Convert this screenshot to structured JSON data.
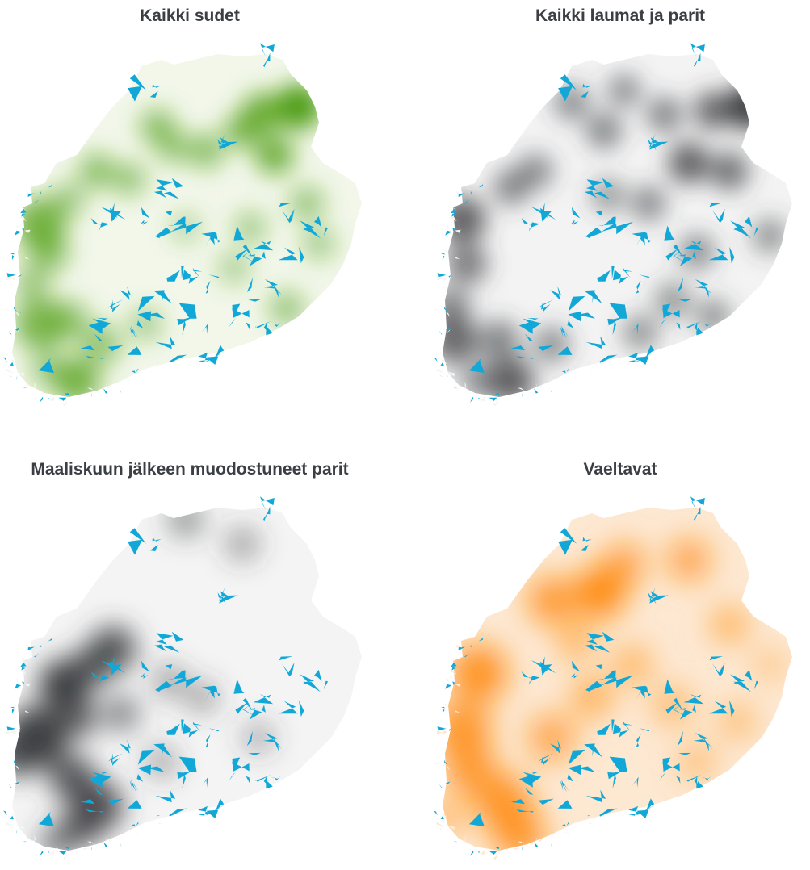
{
  "panels": [
    {
      "title": "Kaikki sudet",
      "colormap": "green",
      "base": "#f2f7ea",
      "blob": "#4f9e12"
    },
    {
      "title": "Kaikki laumat ja parit",
      "colormap": "gray",
      "base": "#f3f3f3",
      "blob": "#3d3f42"
    },
    {
      "title": "Maaliskuun jälkeen muodostuneet parit",
      "colormap": "gray",
      "base": "#f4f4f4",
      "blob": "#3d3f42"
    },
    {
      "title": "Vaeltavat",
      "colormap": "orange",
      "base": "#fde8d2",
      "blob": "#ff8a0a"
    }
  ],
  "lake_color": "#11a8d8"
}
